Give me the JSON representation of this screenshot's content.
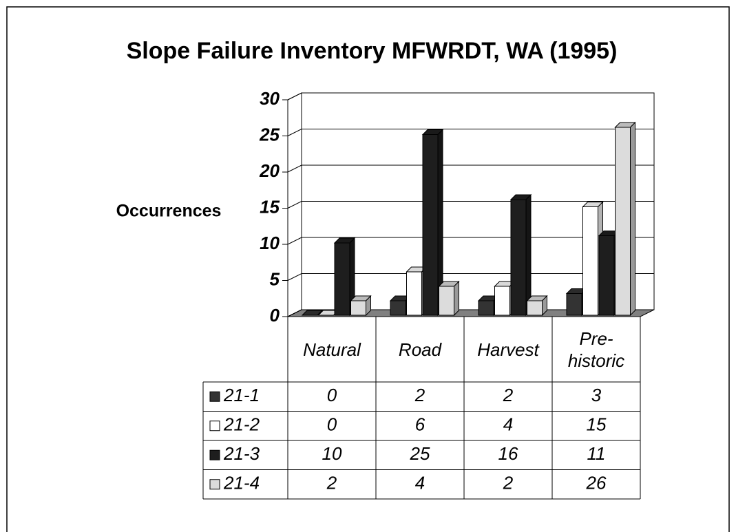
{
  "chart_data": {
    "type": "bar3d",
    "title": "Slope Failure Inventory MFWRDT, WA (1995)",
    "y_label": "Occurrences",
    "categories": [
      "Natural",
      "Road",
      "Harvest",
      "Pre-historic"
    ],
    "series": [
      {
        "name": "21-1",
        "color": "#333333",
        "values": [
          0,
          2,
          2,
          3
        ]
      },
      {
        "name": "21-2",
        "color": "#ffffff",
        "values": [
          0,
          6,
          4,
          15
        ]
      },
      {
        "name": "21-3",
        "color": "#1e1e1e",
        "values": [
          10,
          25,
          16,
          11
        ]
      },
      {
        "name": "21-4",
        "color": "#dcdcdc",
        "values": [
          2,
          4,
          2,
          26
        ]
      }
    ],
    "ylim": [
      0,
      30
    ],
    "yticks": [
      0,
      5,
      10,
      15,
      20,
      25,
      30
    ],
    "grid": true
  }
}
